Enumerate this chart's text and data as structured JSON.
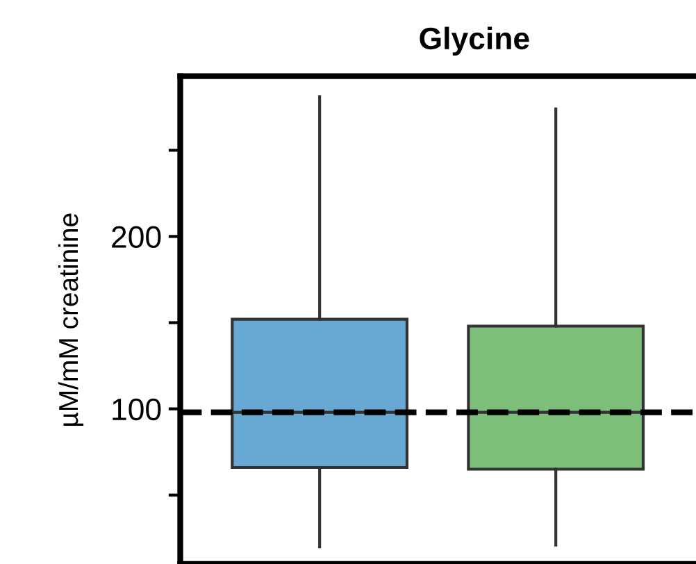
{
  "chart_data": {
    "type": "box",
    "title": "Glycine",
    "ylabel": "µM/mM creatinine",
    "categories": [
      null,
      null
    ],
    "boxes": [
      {
        "low": 20,
        "q1": 66,
        "median": 98,
        "q3": 152,
        "high": 281
      },
      {
        "low": 21,
        "q1": 65,
        "median": 98,
        "q3": 148,
        "high": 274
      }
    ],
    "colors": [
      "#67a9d3",
      "#7dbf7a"
    ],
    "ylim": [
      10,
      293
    ],
    "yticks": [
      {
        "value": 50,
        "label": null
      },
      100,
      {
        "value": 150,
        "label": null
      },
      200,
      {
        "value": 250,
        "label": null
      }
    ],
    "ref_lines": [
      {
        "axis": "y",
        "value": 98,
        "color": "#000000",
        "line_style": "dashed"
      }
    ]
  }
}
